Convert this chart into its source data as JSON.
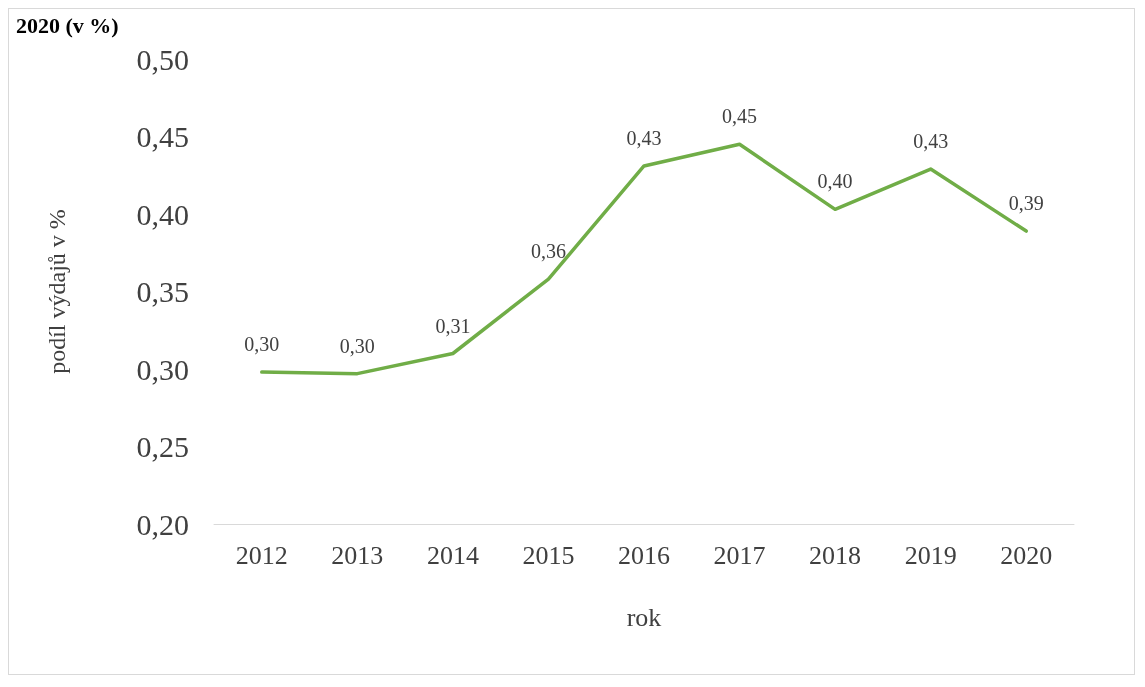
{
  "chart_data": {
    "type": "line",
    "title": "2020 (v %)",
    "xlabel": "rok",
    "ylabel": "podíl výdajů v %",
    "categories": [
      "2012",
      "2013",
      "2014",
      "2015",
      "2016",
      "2017",
      "2018",
      "2019",
      "2020"
    ],
    "series": [
      {
        "color": "#70ad47",
        "values": [
          0.298,
          0.297,
          0.31,
          0.358,
          0.431,
          0.445,
          0.403,
          0.429,
          0.389
        ],
        "value_labels": [
          "0,30",
          "0,30",
          "0,31",
          "0,36",
          "0,43",
          "0,45",
          "0,40",
          "0,43",
          "0,39"
        ]
      }
    ],
    "ylim": [
      0.2,
      0.5
    ],
    "yticks": [
      {
        "value": 0.2,
        "label": "0,20"
      },
      {
        "value": 0.25,
        "label": "0,25"
      },
      {
        "value": 0.3,
        "label": "0,30"
      },
      {
        "value": 0.35,
        "label": "0,35"
      },
      {
        "value": 0.4,
        "label": "0,40"
      },
      {
        "value": 0.45,
        "label": "0,45"
      },
      {
        "value": 0.5,
        "label": "0,50"
      }
    ],
    "grid": false,
    "marker": "none",
    "line_style": "solid"
  }
}
